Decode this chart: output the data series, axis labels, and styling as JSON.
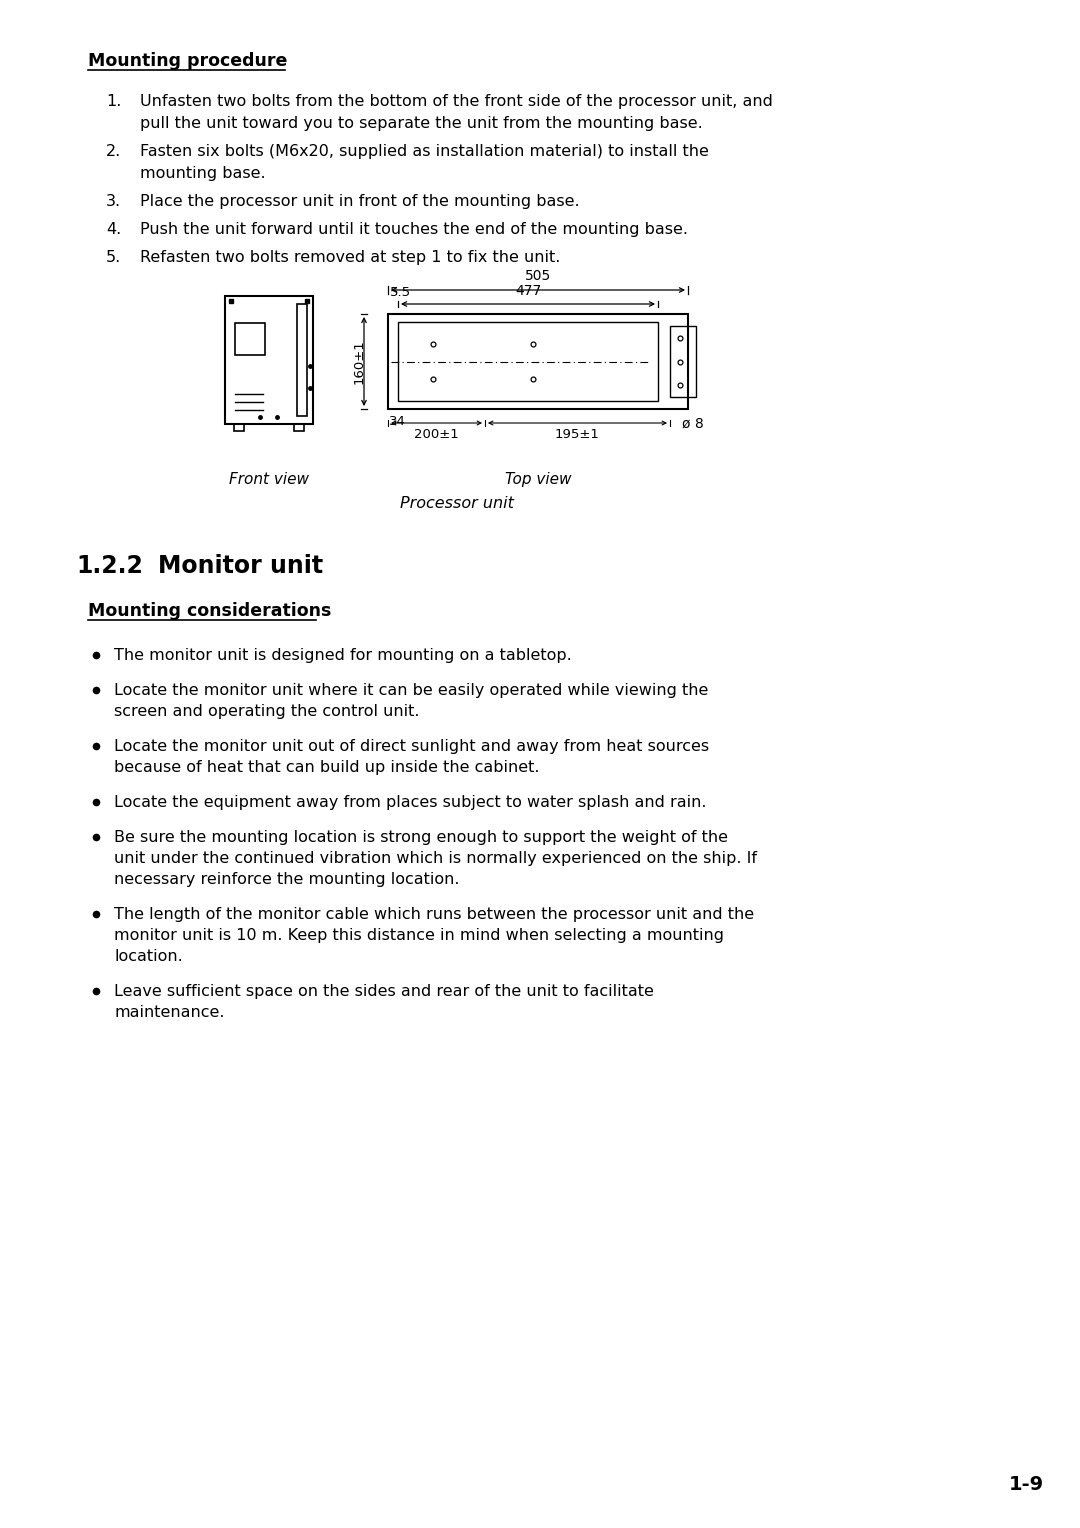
{
  "bg_color": "#ffffff",
  "text_color": "#000000",
  "page_number": "1-9",
  "section_header": "Mounting procedure",
  "steps": [
    "Unfasten two bolts from the bottom of the front side of the processor unit, and\npull the unit toward you to separate the unit from the mounting base.",
    "Fasten six bolts (M6x20, supplied as installation material) to install the\nmounting base.",
    "Place the processor unit in front of the mounting base.",
    "Push the unit forward until it touches the end of the mounting base.",
    "Refasten two bolts removed at step 1 to fix the unit."
  ],
  "front_view_label": "Front view",
  "top_view_label": "Top view",
  "processor_unit_label": "Processor unit",
  "section_122": "1.2.2",
  "section_122_title": "Monitor unit",
  "subsection_header": "Mounting considerations",
  "bullets": [
    "The monitor unit is designed for mounting on a tabletop.",
    "Locate the monitor unit where it can be easily operated while viewing the\nscreen and operating the control unit.",
    "Locate the monitor unit out of direct sunlight and away from heat sources\nbecause of heat that can build up inside the cabinet.",
    "Locate the equipment away from places subject to water splash and rain.",
    "Be sure the mounting location is strong enough to support the weight of the\nunit under the continued vibration which is normally experienced on the ship. If\nnecessary reinforce the mounting location.",
    "The length of the monitor cable which runs between the processor unit and the\nmonitor unit is 10 m. Keep this distance in mind when selecting a mounting\nlocation.",
    "Leave sufficient space on the sides and rear of the unit to facilitate\nmaintenance."
  ],
  "font_size_body": 11.5,
  "font_size_header": 12.5,
  "font_size_section": 17
}
